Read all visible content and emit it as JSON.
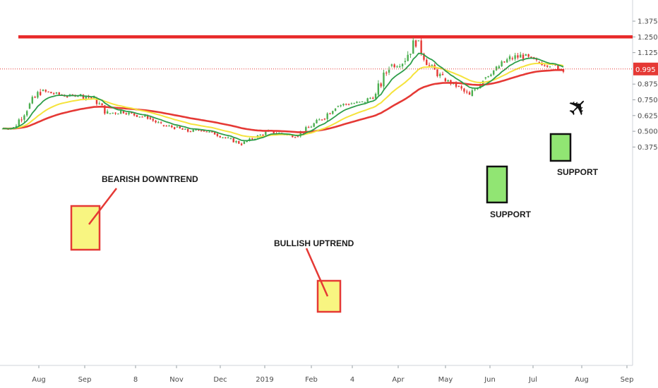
{
  "chart_data": {
    "type": "candlestick",
    "x_ticks": [
      "Aug",
      "Sep",
      "8",
      "Nov",
      "Dec",
      "2019",
      "Feb",
      "4",
      "Apr",
      "May",
      "Jun",
      "Jul",
      "Aug",
      "Sep"
    ],
    "y_ticks": [
      "0.375",
      "0.500",
      "0.625",
      "0.750",
      "0.875",
      "0.995",
      "1.125",
      "1.250",
      "1.375"
    ],
    "ylim": [
      0.31,
      1.52
    ],
    "last_price": {
      "value": 0.995,
      "label": "0.995",
      "color": "#e53935"
    },
    "resistance_level": 1.25,
    "candles_ohlc_weekly_approx": [
      [
        0.52,
        0.56,
        0.5,
        0.53
      ],
      [
        0.53,
        0.7,
        0.52,
        0.68
      ],
      [
        0.68,
        0.88,
        0.66,
        0.82
      ],
      [
        0.82,
        0.86,
        0.76,
        0.8
      ],
      [
        0.8,
        0.84,
        0.76,
        0.78
      ],
      [
        0.78,
        0.8,
        0.74,
        0.79
      ],
      [
        0.79,
        0.88,
        0.74,
        0.76
      ],
      [
        0.76,
        0.78,
        0.62,
        0.64
      ],
      [
        0.64,
        0.7,
        0.58,
        0.66
      ],
      [
        0.66,
        0.68,
        0.6,
        0.63
      ],
      [
        0.63,
        0.66,
        0.58,
        0.61
      ],
      [
        0.61,
        0.62,
        0.52,
        0.55
      ],
      [
        0.55,
        0.58,
        0.5,
        0.53
      ],
      [
        0.53,
        0.56,
        0.48,
        0.5
      ],
      [
        0.5,
        0.53,
        0.47,
        0.51
      ],
      [
        0.51,
        0.52,
        0.46,
        0.48
      ],
      [
        0.48,
        0.5,
        0.42,
        0.44
      ],
      [
        0.44,
        0.46,
        0.38,
        0.4
      ],
      [
        0.4,
        0.46,
        0.38,
        0.45
      ],
      [
        0.45,
        0.52,
        0.44,
        0.5
      ],
      [
        0.5,
        0.54,
        0.46,
        0.48
      ],
      [
        0.48,
        0.5,
        0.44,
        0.46
      ],
      [
        0.46,
        0.55,
        0.45,
        0.53
      ],
      [
        0.53,
        0.63,
        0.51,
        0.6
      ],
      [
        0.6,
        0.73,
        0.58,
        0.7
      ],
      [
        0.7,
        0.78,
        0.68,
        0.72
      ],
      [
        0.72,
        0.76,
        0.68,
        0.73
      ],
      [
        0.73,
        0.82,
        0.71,
        0.79
      ],
      [
        0.79,
        1.05,
        0.78,
        1.02
      ],
      [
        1.02,
        1.12,
        0.96,
        1.05
      ],
      [
        1.05,
        1.28,
        1.0,
        1.22
      ],
      [
        1.22,
        1.24,
        1.0,
        1.02
      ],
      [
        1.02,
        1.05,
        0.88,
        0.92
      ],
      [
        0.92,
        0.94,
        0.84,
        0.86
      ],
      [
        0.86,
        0.88,
        0.72,
        0.78
      ],
      [
        0.78,
        0.94,
        0.76,
        0.92
      ],
      [
        0.92,
        1.02,
        0.9,
        1.0
      ],
      [
        1.0,
        1.14,
        0.98,
        1.08
      ],
      [
        1.08,
        1.2,
        1.02,
        1.1
      ],
      [
        1.1,
        1.13,
        1.0,
        1.05
      ],
      [
        1.05,
        1.1,
        0.98,
        1.03
      ],
      [
        1.03,
        1.06,
        0.96,
        0.99
      ]
    ],
    "annotations": [
      {
        "label": "BEARISH DOWNTREND"
      },
      {
        "label": "BULLISH UPTREND"
      },
      {
        "label": "SUPPORT"
      },
      {
        "label": "SUPPORT"
      }
    ],
    "moving_average_colors": {
      "fast": "#2e9e4a",
      "mid": "#f5e33c",
      "slow": "#e53935"
    },
    "candle_colors": {
      "up": "#4caf50",
      "down": "#e53935"
    }
  }
}
